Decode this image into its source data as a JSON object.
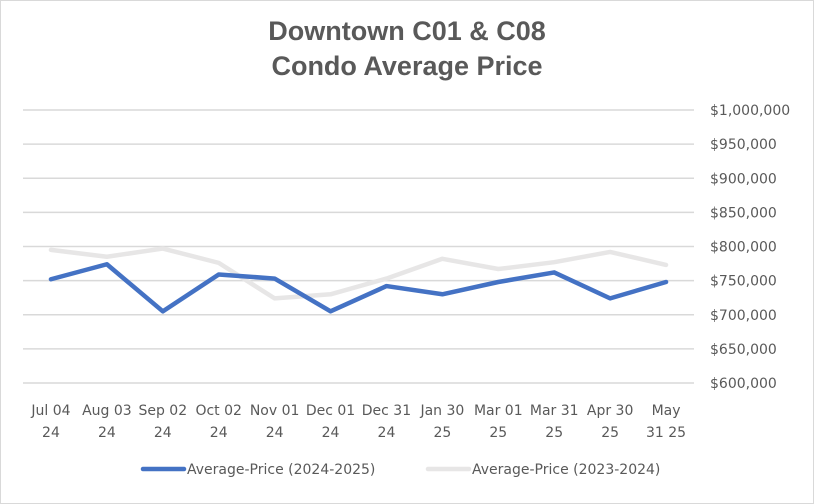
{
  "chart_data": {
    "type": "line",
    "title": [
      "Downtown C01 & C08",
      "Condo Average Price"
    ],
    "xlabel": "",
    "ylabel": "",
    "categories": [
      [
        "Jul 04",
        "24"
      ],
      [
        "Aug 03",
        "24"
      ],
      [
        "Sep 02",
        "24"
      ],
      [
        "Oct 02",
        "24"
      ],
      [
        "Nov 01",
        "24"
      ],
      [
        "Dec 01",
        "24"
      ],
      [
        "Dec 31",
        "24"
      ],
      [
        "Jan 30",
        "25"
      ],
      [
        "Mar 01",
        "25"
      ],
      [
        "Mar 31",
        "25"
      ],
      [
        "Apr 30",
        "25"
      ],
      [
        "May",
        "31 25"
      ]
    ],
    "ylim": [
      600000,
      1000000
    ],
    "y_ticks": [
      1000000,
      950000,
      900000,
      850000,
      800000,
      750000,
      700000,
      650000,
      600000
    ],
    "y_tick_labels": [
      "$1,000,000",
      "$950,000",
      "$900,000",
      "$850,000",
      "$800,000",
      "$750,000",
      "$700,000",
      "$650,000",
      "$600,000"
    ],
    "y_axis_side": "right",
    "grid": true,
    "legend_position": "bottom",
    "series": [
      {
        "name": "Average-Price (2024-2025)",
        "color": "#4472c4",
        "values": [
          752000,
          774000,
          705000,
          759000,
          753000,
          705000,
          742000,
          730000,
          748000,
          762000,
          724000,
          748000
        ]
      },
      {
        "name": "Average-Price (2023-2024)",
        "color": "#e7e6e6",
        "values": [
          795000,
          785000,
          797000,
          776000,
          724000,
          730000,
          753000,
          782000,
          767000,
          777000,
          792000,
          773000
        ]
      }
    ]
  }
}
